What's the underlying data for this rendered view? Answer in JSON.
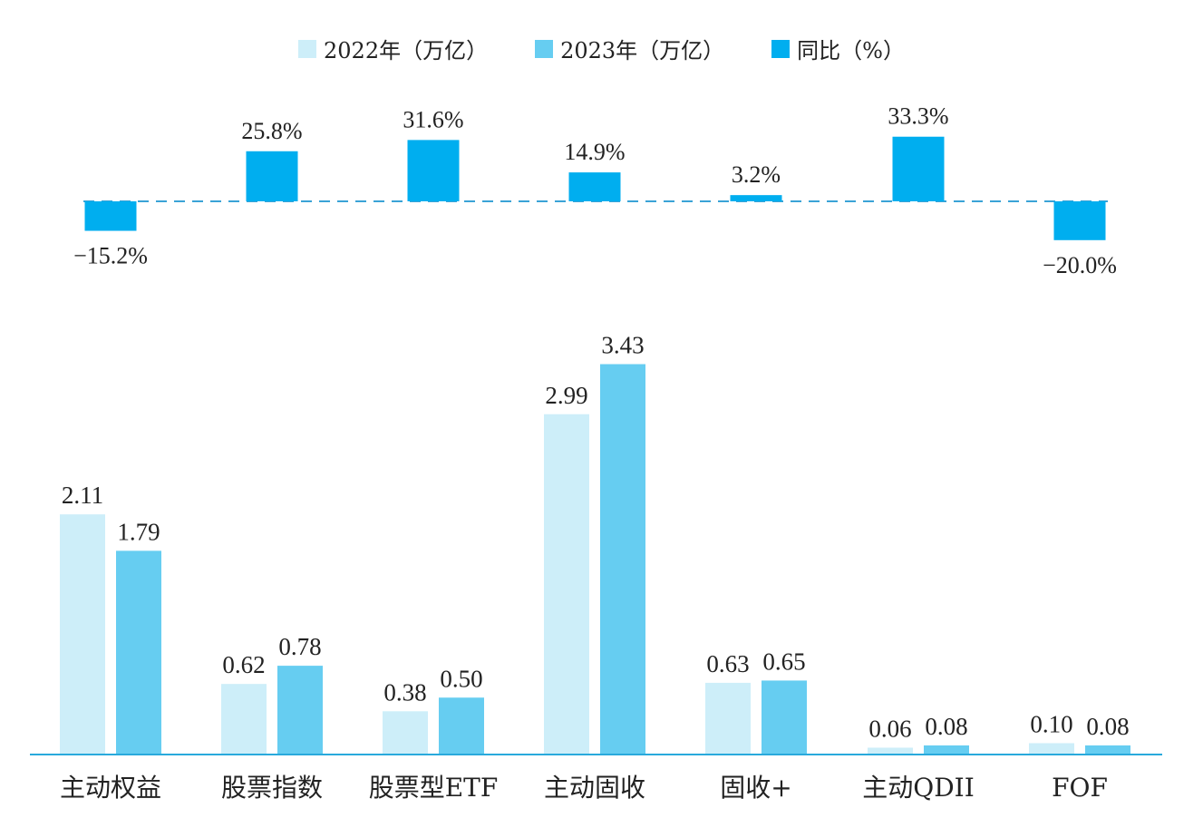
{
  "legend": {
    "s2022": "2022年（万亿）",
    "s2023": "2023年（万亿）",
    "yoy": "同比（%）"
  },
  "colors": {
    "s2022": "#cdeef9",
    "s2023": "#66cdf1",
    "yoy": "#00aeef",
    "axis": "#29a9dc",
    "dash": "#3aa3d6"
  },
  "chart_data": [
    {
      "type": "bar",
      "categories": [
        "主动权益",
        "股票指数",
        "股票型ETF",
        "主动固收",
        "固收+",
        "主动QDII",
        "FOF"
      ],
      "series": [
        {
          "name": "同比（%）",
          "values": [
            -15.2,
            25.8,
            31.6,
            14.9,
            3.2,
            33.3,
            -20.0
          ]
        }
      ],
      "data_labels": [
        "−15.2%",
        "25.8%",
        "31.6%",
        "14.9%",
        "3.2%",
        "33.3%",
        "−20.0%"
      ]
    },
    {
      "type": "bar",
      "categories": [
        "主动权益",
        "股票指数",
        "股票型ETF",
        "主动固收",
        "固收+",
        "主动QDII",
        "FOF"
      ],
      "series": [
        {
          "name": "2022年（万亿）",
          "values": [
            2.11,
            0.62,
            0.38,
            2.99,
            0.63,
            0.06,
            0.1
          ],
          "labels": [
            "2.11",
            "0.62",
            "0.38",
            "2.99",
            "0.63",
            "0.06",
            "0.10"
          ]
        },
        {
          "name": "2023年（万亿）",
          "values": [
            1.79,
            0.78,
            0.5,
            3.43,
            0.65,
            0.08,
            0.08
          ],
          "labels": [
            "1.79",
            "0.78",
            "0.50",
            "3.43",
            "0.65",
            "0.08",
            "0.08"
          ]
        }
      ]
    }
  ]
}
